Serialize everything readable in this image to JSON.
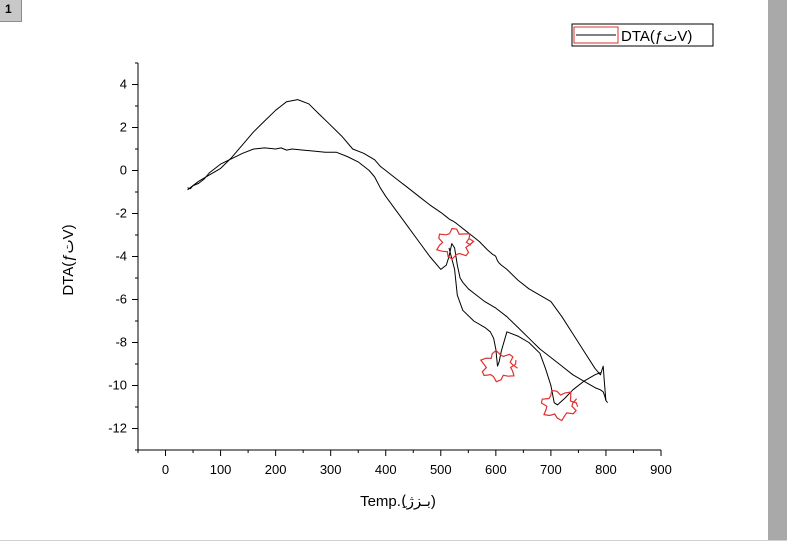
{
  "layer_tab": "1",
  "colors": {
    "curve": "#000000",
    "annotation": "#e03030",
    "frame": "#a9a9a9"
  },
  "chart_data": {
    "type": "line",
    "title": "",
    "xlabel": "Temp.(ِبـزژ)",
    "ylabel": "DTA(ƒتV)",
    "xlim": [
      -50,
      900
    ],
    "ylim": [
      -13,
      5
    ],
    "xticks": [
      0,
      100,
      200,
      300,
      400,
      500,
      600,
      700,
      800,
      900
    ],
    "yticks": [
      4,
      2,
      0,
      -2,
      -4,
      -6,
      -8,
      -10,
      -12
    ],
    "legend": {
      "placement": "top-right",
      "entries": [
        "DTA(ƒتV)"
      ]
    },
    "grid": false,
    "series": [
      {
        "name": "DTA(ƒتV)",
        "x": [
          40,
          45,
          50,
          60,
          70,
          80,
          100,
          120,
          140,
          160,
          180,
          200,
          210,
          220,
          230,
          250,
          270,
          290,
          310,
          330,
          350,
          370,
          380,
          390,
          400,
          420,
          440,
          460,
          480,
          500,
          510,
          515,
          520,
          525,
          530,
          535,
          540,
          550,
          560,
          580,
          600,
          620,
          640,
          660,
          680,
          700,
          720,
          740,
          760,
          780,
          790,
          795,
          798,
          800,
          803
        ],
        "y": [
          -0.8,
          -0.85,
          -0.7,
          -0.6,
          -0.4,
          -0.1,
          0.3,
          0.55,
          0.8,
          1.0,
          1.05,
          1.0,
          1.05,
          0.95,
          1.0,
          0.95,
          0.9,
          0.85,
          0.85,
          0.65,
          0.4,
          0.0,
          -0.3,
          -0.8,
          -1.2,
          -1.9,
          -2.6,
          -3.3,
          -4.0,
          -4.6,
          -4.4,
          -4.0,
          -3.4,
          -3.6,
          -4.4,
          -5.0,
          -5.2,
          -5.5,
          -5.7,
          -6.1,
          -6.4,
          -6.8,
          -7.3,
          -7.8,
          -8.3,
          -8.7,
          -9.1,
          -9.5,
          -9.8,
          -10.1,
          -10.2,
          -10.3,
          -10.5,
          -10.7,
          -10.8
        ]
      },
      {
        "name": "",
        "x": [
          800,
          797,
          795,
          790,
          780,
          760,
          740,
          720,
          700,
          680,
          660,
          640,
          620,
          610,
          606,
          603,
          600,
          598,
          594,
          585,
          570,
          555,
          545,
          535,
          528,
          522,
          518,
          515,
          510,
          500,
          480,
          460,
          440,
          420,
          400,
          390,
          380,
          360,
          340,
          320,
          300,
          280,
          260,
          240,
          220,
          210,
          200,
          180,
          160,
          140,
          120,
          100,
          80,
          60,
          45,
          40
        ],
        "y": [
          -10.7,
          -9.8,
          -9.1,
          -9.5,
          -9.2,
          -8.4,
          -7.6,
          -6.8,
          -6.1,
          -5.8,
          -5.5,
          -5.1,
          -4.6,
          -4.4,
          -4.3,
          -4.2,
          -4.0,
          -3.95,
          -3.9,
          -3.7,
          -3.3,
          -3.0,
          -2.8,
          -2.6,
          -2.45,
          -2.35,
          -2.3,
          -2.25,
          -2.15,
          -1.95,
          -1.6,
          -1.2,
          -0.8,
          -0.4,
          0.0,
          0.2,
          0.5,
          0.8,
          1.0,
          1.6,
          2.1,
          2.6,
          3.1,
          3.3,
          3.2,
          3.0,
          2.8,
          2.3,
          1.8,
          1.2,
          0.6,
          0.1,
          -0.2,
          -0.5,
          -0.8,
          -0.9
        ]
      },
      {
        "name": "",
        "x": [
          515,
          525,
          530,
          540,
          560,
          580,
          590,
          596,
          600,
          603,
          606,
          610,
          620,
          640,
          660,
          680,
          690,
          700,
          706,
          712,
          725,
          740,
          760,
          780,
          790
        ],
        "y": [
          -3.6,
          -4.6,
          -5.8,
          -6.5,
          -7.0,
          -7.3,
          -7.5,
          -7.8,
          -8.3,
          -9.1,
          -8.9,
          -8.4,
          -7.5,
          -7.7,
          -8.0,
          -8.5,
          -9.2,
          -10.0,
          -10.8,
          -10.9,
          -10.6,
          -10.2,
          -9.8,
          -9.5,
          -9.4
        ]
      }
    ],
    "annotations": [
      {
        "type": "circle",
        "x": 525,
        "y": -3.4
      },
      {
        "type": "circle",
        "x": 605,
        "y": -9.1
      },
      {
        "type": "circle",
        "x": 715,
        "y": -10.9
      }
    ]
  }
}
